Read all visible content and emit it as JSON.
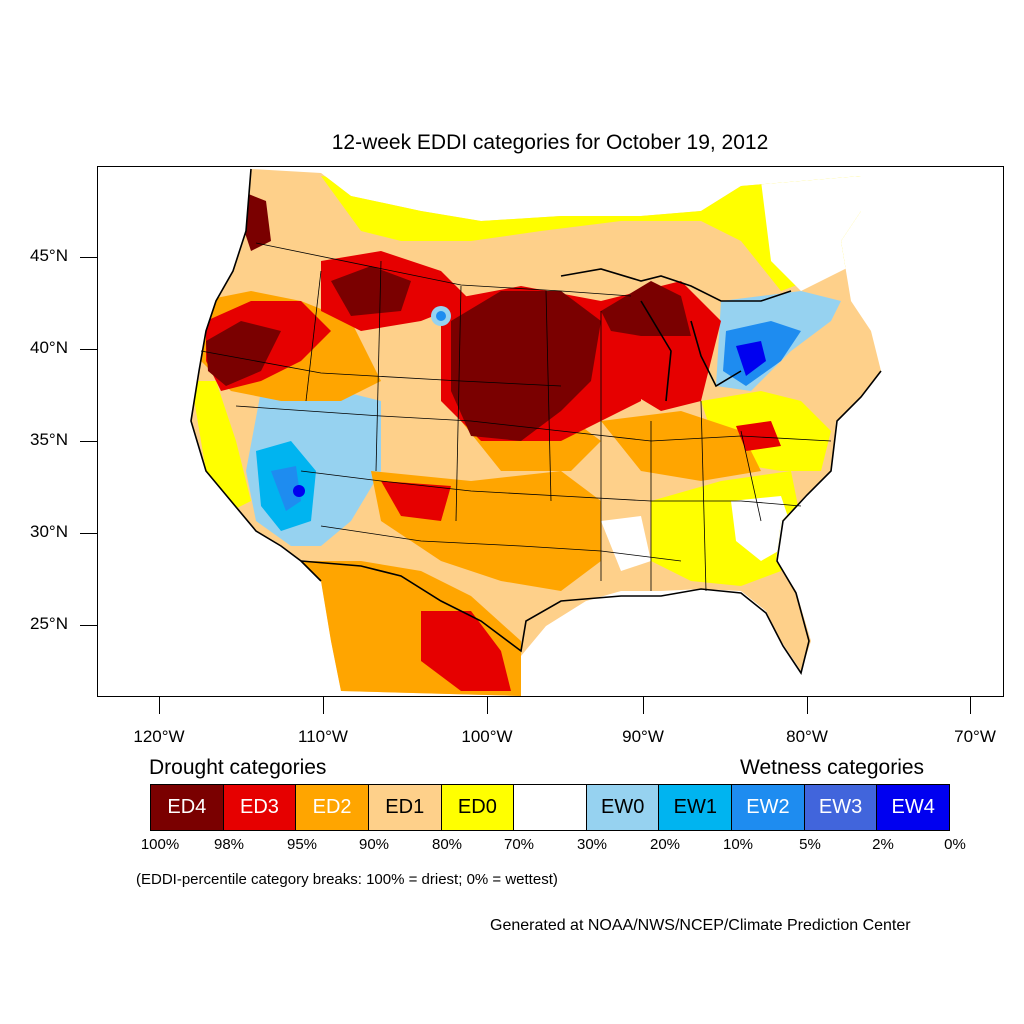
{
  "title": "12-week EDDI categories for October 19, 2012",
  "lat_labels": [
    "45°N",
    "40°N",
    "35°N",
    "30°N",
    "25°N"
  ],
  "lon_labels": [
    "120°W",
    "110°W",
    "100°W",
    "90°W",
    "80°W",
    "70°W"
  ],
  "legend": {
    "drought_heading": "Drought categories",
    "wetness_heading": "Wetness categories",
    "categories": [
      {
        "label": "ED4",
        "color": "#7a0000",
        "text_color": "#ffffff"
      },
      {
        "label": "ED3",
        "color": "#e60000",
        "text_color": "#ffffff"
      },
      {
        "label": "ED2",
        "color": "#ffa500",
        "text_color": "#ffffff"
      },
      {
        "label": "ED1",
        "color": "#fed08a",
        "text_color": "#000000"
      },
      {
        "label": "ED0",
        "color": "#ffff00",
        "text_color": "#000000"
      },
      {
        "label": "",
        "color": "#ffffff",
        "text_color": "#000000"
      },
      {
        "label": "EW0",
        "color": "#96d2f0",
        "text_color": "#000000"
      },
      {
        "label": "EW1",
        "color": "#00b4f0",
        "text_color": "#000000"
      },
      {
        "label": "EW2",
        "color": "#1e8cf0",
        "text_color": "#ffffff"
      },
      {
        "label": "EW3",
        "color": "#4165dc",
        "text_color": "#ffffff"
      },
      {
        "label": "EW4",
        "color": "#0000f0",
        "text_color": "#ffffff"
      }
    ],
    "breaks": [
      "100%",
      "98%",
      "95%",
      "90%",
      "80%",
      "70%",
      "30%",
      "20%",
      "10%",
      "5%",
      "2%",
      "0%"
    ]
  },
  "note": "(EDDI-percentile category breaks: 100% = driest; 0% = wettest)",
  "credit": "Generated at NOAA/NWS/NCEP/Climate Prediction Center"
}
